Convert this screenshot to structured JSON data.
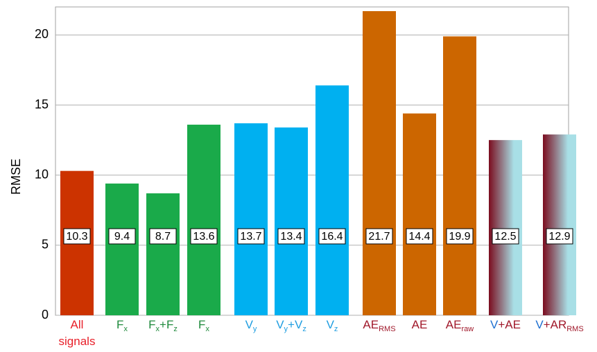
{
  "chart_data": {
    "type": "bar",
    "y_label": "RMSE",
    "categories": [
      [
        [
          {
            "text": "All",
            "color": "#e8202a"
          }
        ],
        [
          {
            "text": "signals",
            "color": "#e8202a"
          }
        ]
      ],
      [
        [
          {
            "text": "F",
            "color": "#1f8a3c"
          },
          {
            "sub": "x",
            "color": "#1f8a3c"
          }
        ]
      ],
      [
        [
          {
            "text": "F",
            "color": "#1f8a3c"
          },
          {
            "sub": "x",
            "color": "#1f8a3c"
          },
          {
            "text": "+F",
            "color": "#1f8a3c"
          },
          {
            "sub": "z",
            "color": "#1f8a3c"
          }
        ]
      ],
      [
        [
          {
            "text": "F",
            "color": "#1f8a3c"
          },
          {
            "sub": "x",
            "color": "#1f8a3c"
          }
        ]
      ],
      [
        [
          {
            "text": "V",
            "color": "#1e9de0"
          },
          {
            "sub": "y",
            "color": "#1e9de0"
          }
        ]
      ],
      [
        [
          {
            "text": "V",
            "color": "#1e9de0"
          },
          {
            "sub": "y",
            "color": "#1e9de0"
          },
          {
            "text": "+V",
            "color": "#1e9de0"
          },
          {
            "sub": "z",
            "color": "#1e9de0"
          }
        ]
      ],
      [
        [
          {
            "text": "V",
            "color": "#1e9de0"
          },
          {
            "sub": "z",
            "color": "#1e9de0"
          }
        ]
      ],
      [
        [
          {
            "text": "AE",
            "color": "#a0182a"
          },
          {
            "sub": "RMS",
            "color": "#a0182a"
          }
        ]
      ],
      [
        [
          {
            "text": "AE",
            "color": "#a0182a"
          }
        ]
      ],
      [
        [
          {
            "text": "AE",
            "color": "#a0182a"
          },
          {
            "sub": "raw",
            "color": "#a0182a"
          }
        ]
      ],
      [
        [
          {
            "text": "V",
            "color": "#1e6fd0"
          },
          {
            "text": "+AE",
            "color": "#a0182a"
          }
        ]
      ],
      [
        [
          {
            "text": "V",
            "color": "#1e6fd0"
          },
          {
            "text": "+AR",
            "color": "#a0182a"
          },
          {
            "sub": "RMS",
            "color": "#a0182a"
          }
        ]
      ]
    ],
    "values": [
      10.3,
      9.4,
      8.7,
      13.6,
      13.7,
      13.4,
      16.4,
      21.7,
      14.4,
      19.9,
      12.5,
      12.9
    ],
    "colors": [
      "#cc3300",
      "#1aaa4a",
      "#1aaa4a",
      "#1aaa4a",
      "#00b0f0",
      "#00b0f0",
      "#00b0f0",
      "#cc6600",
      "#cc6600",
      "#cc6600",
      [
        "#7b0c1e",
        "#a8dfe6"
      ],
      [
        "#7b0c1e",
        "#a8dfe6"
      ]
    ],
    "ylim": [
      0,
      22
    ],
    "yticks": [
      0,
      5,
      10,
      15,
      20
    ],
    "grid": true
  }
}
